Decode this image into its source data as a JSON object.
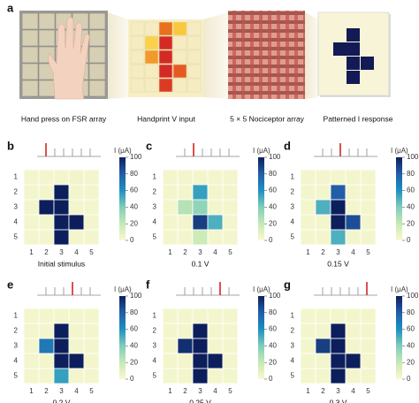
{
  "panel_a": {
    "label": "a",
    "captions": [
      "Hand press on FSR array",
      "Handprint V input",
      "5 × 5 Nociceptor array",
      "Patterned I response"
    ]
  },
  "chart_data": [
    {
      "type": "heatmap",
      "label": "b",
      "caption": "Initial stimulus",
      "x": [
        1,
        2,
        3,
        4,
        5
      ],
      "y": [
        1,
        2,
        3,
        4,
        5
      ],
      "colorbar_label": "I (μA)",
      "clim": [
        0,
        100
      ],
      "cticks": [
        0,
        20,
        40,
        60,
        80,
        100
      ],
      "values": [
        [
          3,
          3,
          3,
          4,
          3
        ],
        [
          3,
          3,
          100,
          3,
          3
        ],
        [
          3,
          100,
          100,
          3,
          3
        ],
        [
          3,
          3,
          100,
          100,
          3
        ],
        [
          3,
          3,
          100,
          3,
          3
        ]
      ]
    },
    {
      "type": "heatmap",
      "label": "c",
      "caption": "0.1 V",
      "x": [
        1,
        2,
        3,
        4,
        5
      ],
      "y": [
        1,
        2,
        3,
        4,
        5
      ],
      "colorbar_label": "I (μA)",
      "clim": [
        0,
        100
      ],
      "cticks": [
        0,
        20,
        40,
        60,
        80,
        100
      ],
      "values": [
        [
          3,
          3,
          3,
          3,
          3
        ],
        [
          3,
          3,
          55,
          3,
          3
        ],
        [
          3,
          25,
          35,
          3,
          3
        ],
        [
          3,
          3,
          90,
          50,
          3
        ],
        [
          3,
          3,
          18,
          3,
          3
        ]
      ]
    },
    {
      "type": "heatmap",
      "label": "d",
      "caption": "0.15 V",
      "x": [
        1,
        2,
        3,
        4,
        5
      ],
      "y": [
        1,
        2,
        3,
        4,
        5
      ],
      "colorbar_label": "I (μA)",
      "clim": [
        0,
        100
      ],
      "cticks": [
        0,
        20,
        40,
        60,
        80,
        100
      ],
      "values": [
        [
          3,
          3,
          3,
          3,
          3
        ],
        [
          3,
          3,
          80,
          3,
          3
        ],
        [
          3,
          50,
          100,
          3,
          3
        ],
        [
          3,
          3,
          100,
          85,
          3
        ],
        [
          3,
          3,
          50,
          3,
          3
        ]
      ]
    },
    {
      "type": "heatmap",
      "label": "e",
      "caption": "0.2 V",
      "x": [
        1,
        2,
        3,
        4,
        5
      ],
      "y": [
        1,
        2,
        3,
        4,
        5
      ],
      "colorbar_label": "I (μA)",
      "clim": [
        0,
        100
      ],
      "cticks": [
        0,
        20,
        40,
        60,
        80,
        100
      ],
      "values": [
        [
          3,
          3,
          3,
          3,
          3
        ],
        [
          3,
          3,
          100,
          3,
          3
        ],
        [
          3,
          70,
          100,
          3,
          3
        ],
        [
          3,
          3,
          100,
          100,
          3
        ],
        [
          3,
          3,
          55,
          3,
          3
        ]
      ]
    },
    {
      "type": "heatmap",
      "label": "f",
      "caption": "0.25 V",
      "x": [
        1,
        2,
        3,
        4,
        5
      ],
      "y": [
        1,
        2,
        3,
        4,
        5
      ],
      "colorbar_label": "I (μA)",
      "clim": [
        0,
        100
      ],
      "cticks": [
        0,
        20,
        40,
        60,
        80,
        100
      ],
      "values": [
        [
          3,
          3,
          3,
          3,
          3
        ],
        [
          3,
          3,
          100,
          3,
          3
        ],
        [
          3,
          95,
          100,
          3,
          3
        ],
        [
          3,
          3,
          100,
          100,
          3
        ],
        [
          3,
          3,
          100,
          3,
          3
        ]
      ]
    },
    {
      "type": "heatmap",
      "label": "g",
      "caption": "0.3 V",
      "x": [
        1,
        2,
        3,
        4,
        5
      ],
      "y": [
        1,
        2,
        3,
        4,
        5
      ],
      "colorbar_label": "I (μA)",
      "clim": [
        0,
        100
      ],
      "cticks": [
        0,
        20,
        40,
        60,
        80,
        100
      ],
      "values": [
        [
          3,
          3,
          3,
          3,
          3
        ],
        [
          3,
          3,
          100,
          3,
          3
        ],
        [
          3,
          90,
          100,
          3,
          3
        ],
        [
          3,
          3,
          100,
          100,
          3
        ],
        [
          3,
          3,
          100,
          3,
          3
        ]
      ]
    }
  ]
}
